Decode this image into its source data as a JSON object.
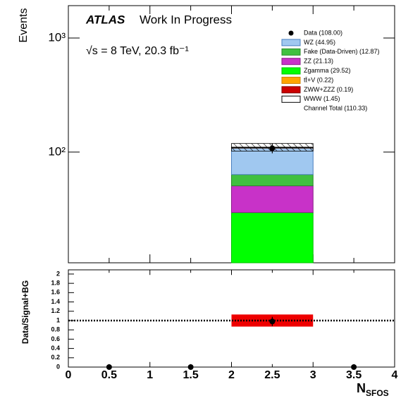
{
  "chart_data": {
    "type": "stacked_histogram",
    "ylabel": "Events",
    "atlas": "ATLAS",
    "status": "Work In Progress",
    "energy_label": "√s = 8 TeV, 20.3 fb⁻¹",
    "bins": [
      0,
      1,
      2,
      3,
      4
    ],
    "xlim": [
      0,
      4
    ],
    "xticks": [
      0,
      0.5,
      1,
      1.5,
      2,
      2.5,
      3,
      3.5,
      4
    ],
    "xlabel": "N",
    "xlabel_sub": "SFOS",
    "log_y": true,
    "ylim": [
      10.7,
      1923
    ],
    "yticks": [
      {
        "value": 100,
        "label": "10²"
      },
      {
        "value": 1000,
        "label": "10³"
      }
    ],
    "series": [
      {
        "name": "WZ (44.95)",
        "color": "#a0c8f0",
        "edge": "#4a7fc0",
        "values": [
          0,
          0,
          44.95,
          0
        ]
      },
      {
        "name": "Fake (Data-Driven)  (12.87)",
        "color": "#40c040",
        "edge": "#2a8a2a",
        "values": [
          0,
          0,
          12.87,
          0
        ]
      },
      {
        "name": "ZZ (21.13)",
        "color": "#c832c8",
        "edge": "#8a1e8a",
        "values": [
          0,
          0,
          21.13,
          0
        ]
      },
      {
        "name": "Zgamma (29.52)",
        "color": "#00ff00",
        "edge": "#00c000",
        "values": [
          0,
          0,
          29.52,
          0
        ]
      },
      {
        "name": "tt̄+V (0.22)",
        "color": "#ffa500",
        "edge": "#d08000",
        "values": [
          0,
          0,
          0.22,
          0
        ]
      },
      {
        "name": "ZWW+ZZZ (0.19)",
        "color": "#cc0000",
        "edge": "#800000",
        "values": [
          0,
          0,
          0.19,
          0
        ]
      },
      {
        "name": "WWW (1.45)",
        "color": "#ffffff",
        "edge": "#000000",
        "values": [
          0,
          0,
          1.45,
          0
        ]
      }
    ],
    "stack_order": [
      3,
      2,
      1,
      0,
      4,
      5,
      6
    ],
    "data": {
      "name": "Data (108.00)",
      "color": "#000000",
      "values": [
        0,
        0,
        108,
        0
      ],
      "errors": [
        0,
        0,
        10.4,
        0
      ]
    },
    "total_label": "Channel Total  (110.33)",
    "band_low": [
      null,
      null,
      102,
      null
    ],
    "band_high": [
      null,
      null,
      119,
      null
    ],
    "ratio": {
      "ylabel": "Data/Signal+BG",
      "ylim": [
        0,
        2.09
      ],
      "yticks": [
        0,
        0.2,
        0.4,
        0.6,
        0.8,
        1,
        1.2,
        1.4,
        1.6,
        1.8,
        2
      ],
      "values": [
        0,
        0,
        0.98,
        0
      ],
      "errors": [
        0,
        0,
        0.1,
        0
      ],
      "band_low": [
        null,
        null,
        0.87,
        null
      ],
      "band_high": [
        null,
        null,
        1.13,
        null
      ],
      "band_color": "#ee0000",
      "ref_line": 1
    }
  }
}
